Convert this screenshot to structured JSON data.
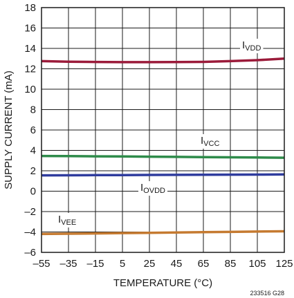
{
  "chart_data": {
    "type": "line",
    "title": "",
    "xlabel": "TEMPERATURE (°C)",
    "ylabel": "SUPPLY CURRENT (mA)",
    "xlim": [
      -55,
      125
    ],
    "ylim": [
      -6,
      18
    ],
    "x_ticks": [
      -55,
      -35,
      -15,
      5,
      25,
      45,
      65,
      85,
      105,
      125
    ],
    "y_ticks": [
      -6,
      -4,
      -2,
      0,
      2,
      4,
      6,
      8,
      10,
      12,
      14,
      16,
      18
    ],
    "x_tick_labels": [
      "–55",
      "–35",
      "–15",
      "5",
      "25",
      "45",
      "65",
      "85",
      "105",
      "125"
    ],
    "y_tick_labels": [
      "–6",
      "–4",
      "–2",
      "0",
      "2",
      "4",
      "6",
      "8",
      "10",
      "12",
      "14",
      "16",
      "18"
    ],
    "grid": true,
    "series": [
      {
        "name": "IVDD",
        "label_main": "I",
        "label_sub": "VDD",
        "color": "#9b1b3a",
        "x": [
          -55,
          -35,
          -15,
          5,
          25,
          45,
          65,
          85,
          105,
          125
        ],
        "y": [
          12.75,
          12.7,
          12.67,
          12.65,
          12.65,
          12.66,
          12.68,
          12.75,
          12.85,
          13.0
        ]
      },
      {
        "name": "IVCC",
        "label_main": "I",
        "label_sub": "VCC",
        "color": "#2e8b4a",
        "x": [
          -55,
          -35,
          -15,
          5,
          25,
          45,
          65,
          85,
          105,
          125
        ],
        "y": [
          3.45,
          3.44,
          3.42,
          3.4,
          3.38,
          3.36,
          3.34,
          3.32,
          3.3,
          3.28
        ]
      },
      {
        "name": "IOVDD",
        "label_main": "I",
        "label_sub": "OVDD",
        "color": "#2f3c9e",
        "x": [
          -55,
          -35,
          -15,
          5,
          25,
          45,
          65,
          85,
          105,
          125
        ],
        "y": [
          1.55,
          1.56,
          1.57,
          1.58,
          1.59,
          1.6,
          1.61,
          1.62,
          1.63,
          1.64
        ]
      },
      {
        "name": "IVEE",
        "label_main": "I",
        "label_sub": "VEE",
        "color": "#c57a30",
        "x": [
          -55,
          -35,
          -15,
          5,
          25,
          45,
          65,
          85,
          105,
          125
        ],
        "y": [
          -4.2,
          -4.17,
          -4.14,
          -4.11,
          -4.08,
          -4.05,
          -4.02,
          -3.99,
          -3.96,
          -3.93
        ]
      }
    ],
    "figure_code": "233516 G28"
  }
}
